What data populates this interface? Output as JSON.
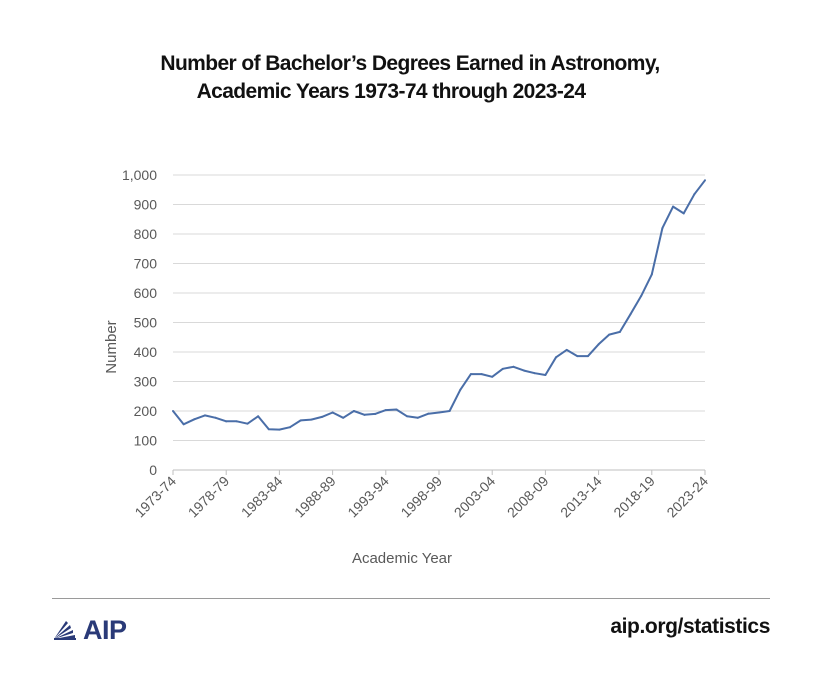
{
  "chart_data": {
    "type": "line",
    "title": "Number of Bachelor’s Degrees Earned in Astronomy,",
    "subtitle": "Academic Years 1973-74 through 2023-24",
    "xlabel": "Academic Year",
    "ylabel": "Number",
    "ylim": [
      0,
      1000
    ],
    "ytick_step": 100,
    "grid": true,
    "legend": "none",
    "line_color": "#4a6ea8",
    "x": [
      "1973-74",
      "1974-75",
      "1975-76",
      "1976-77",
      "1977-78",
      "1978-79",
      "1979-80",
      "1980-81",
      "1981-82",
      "1982-83",
      "1983-84",
      "1984-85",
      "1985-86",
      "1986-87",
      "1987-88",
      "1988-89",
      "1989-90",
      "1990-91",
      "1991-92",
      "1992-93",
      "1993-94",
      "1994-95",
      "1995-96",
      "1996-97",
      "1997-98",
      "1998-99",
      "1999-00",
      "2000-01",
      "2001-02",
      "2002-03",
      "2003-04",
      "2004-05",
      "2005-06",
      "2006-07",
      "2007-08",
      "2008-09",
      "2009-10",
      "2010-11",
      "2011-12",
      "2012-13",
      "2013-14",
      "2014-15",
      "2015-16",
      "2016-17",
      "2017-18",
      "2018-19",
      "2019-20",
      "2020-21",
      "2021-22",
      "2022-23",
      "2023-24"
    ],
    "x_tick_labels": [
      "1973-74",
      "1978-79",
      "1983-84",
      "1988-89",
      "1993-94",
      "1998-99",
      "2003-04",
      "2008-09",
      "2013-14",
      "2018-19",
      "2023-24"
    ],
    "series": [
      {
        "name": "",
        "values": [
          200,
          155,
          172,
          185,
          177,
          165,
          165,
          157,
          182,
          138,
          137,
          145,
          168,
          171,
          180,
          195,
          177,
          200,
          187,
          190,
          203,
          205,
          182,
          177,
          191,
          195,
          200,
          272,
          325,
          325,
          316,
          343,
          350,
          337,
          328,
          322,
          382,
          407,
          386,
          386,
          426,
          459,
          468,
          528,
          590,
          663,
          820,
          893,
          870,
          935,
          982
        ]
      }
    ]
  },
  "footer": {
    "logo_text": "AIP",
    "url": "aip.org/statistics"
  },
  "colors": {
    "accent": "#2a3a78",
    "rule": "#9a9a9a",
    "grid": "#d9d9d9"
  },
  "icons": {
    "logo": "aip-fan-logo-icon"
  }
}
